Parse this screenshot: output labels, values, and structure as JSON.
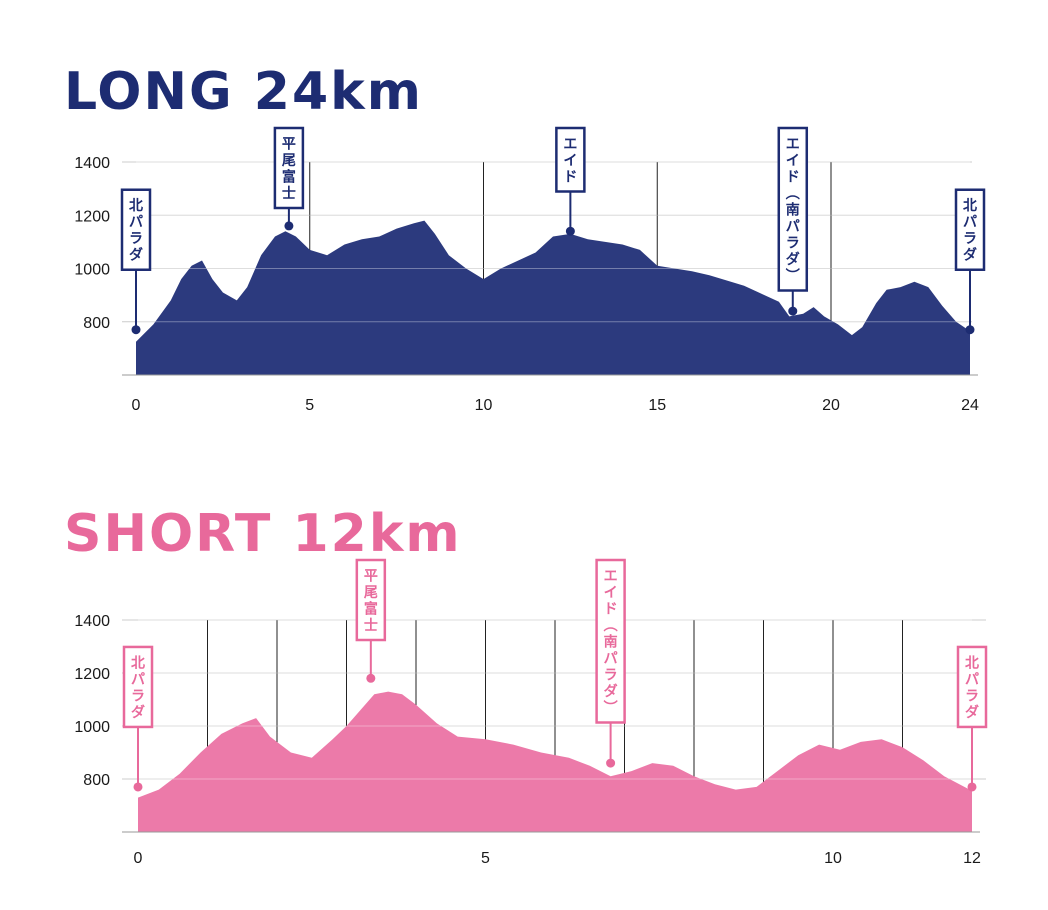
{
  "charts": [
    {
      "id": "long",
      "title": "LONG 24km",
      "color": "#1d2c72",
      "fill": "#2c3a7e",
      "chart_data": {
        "type": "area",
        "title": "LONG 24km",
        "xlabel": "",
        "ylabel": "",
        "xlim": [
          0,
          24
        ],
        "ylim": [
          600,
          1400
        ],
        "x_ticks": [
          0,
          5,
          10,
          15,
          20,
          24
        ],
        "y_ticks": [
          800,
          1000,
          1200,
          1400
        ],
        "grid": true,
        "vlines": [
          5,
          10,
          15,
          20
        ],
        "series": [
          {
            "x": [
              0,
              0.5,
              1,
              1.3,
              1.6,
              1.9,
              2.2,
              2.5,
              2.9,
              3.2,
              3.6,
              4.0,
              4.3,
              4.6,
              5.0,
              5.5,
              6.0,
              6.5,
              7.0,
              7.5,
              8.0,
              8.3,
              8.6,
              9.0,
              9.5,
              10.0,
              10.5,
              11.0,
              11.5,
              12.0,
              12.5,
              13.0,
              13.5,
              14.0,
              14.5,
              15.0,
              15.5,
              16.0,
              16.5,
              17.0,
              17.5,
              18.0,
              18.5,
              18.8,
              19.2,
              19.5,
              19.8,
              20.2,
              20.6,
              20.9,
              21.3,
              21.6,
              22.0,
              22.4,
              22.8,
              23.2,
              23.6,
              24.0
            ],
            "y": [
              725,
              790,
              880,
              960,
              1010,
              1030,
              960,
              910,
              880,
              930,
              1050,
              1120,
              1140,
              1120,
              1070,
              1050,
              1090,
              1110,
              1120,
              1150,
              1170,
              1180,
              1130,
              1050,
              1000,
              960,
              1000,
              1030,
              1060,
              1120,
              1130,
              1110,
              1100,
              1090,
              1070,
              1010,
              1000,
              990,
              975,
              955,
              935,
              905,
              875,
              820,
              830,
              855,
              820,
              790,
              750,
              780,
              870,
              920,
              930,
              950,
              930,
              860,
              800,
              765
            ]
          }
        ],
        "markers": [
          {
            "x": 0,
            "y": 770,
            "label": "北パラダ"
          },
          {
            "x": 4.4,
            "y": 1160,
            "label": "平尾富士"
          },
          {
            "x": 12.5,
            "y": 1140,
            "label": "エイド"
          },
          {
            "x": 18.9,
            "y": 840,
            "label": "エイド（南パラダ）"
          },
          {
            "x": 24,
            "y": 770,
            "label": "北パラダ"
          }
        ]
      }
    },
    {
      "id": "short",
      "title": "SHORT 12km",
      "color": "#e8699b",
      "fill": "#ec7aa9",
      "chart_data": {
        "type": "area",
        "title": "SHORT 12km",
        "xlabel": "",
        "ylabel": "",
        "xlim": [
          0,
          12
        ],
        "ylim": [
          600,
          1400
        ],
        "x_ticks": [
          0,
          5,
          10,
          12
        ],
        "y_ticks": [
          800,
          1000,
          1200,
          1400
        ],
        "grid": true,
        "vlines": [
          1,
          2,
          3,
          4,
          5,
          6,
          7,
          8,
          9,
          10,
          11
        ],
        "series": [
          {
            "x": [
              0,
              0.3,
              0.6,
              0.9,
              1.2,
              1.5,
              1.7,
              1.9,
              2.2,
              2.5,
              2.8,
              3.0,
              3.2,
              3.4,
              3.6,
              3.8,
              4.0,
              4.3,
              4.6,
              5.0,
              5.4,
              5.8,
              6.2,
              6.5,
              6.8,
              7.1,
              7.4,
              7.7,
              8.0,
              8.3,
              8.6,
              8.9,
              9.2,
              9.5,
              9.8,
              10.1,
              10.4,
              10.7,
              11.0,
              11.3,
              11.6,
              12.0
            ],
            "y": [
              730,
              760,
              820,
              900,
              970,
              1010,
              1030,
              960,
              900,
              880,
              950,
              1000,
              1060,
              1120,
              1130,
              1120,
              1080,
              1010,
              960,
              950,
              930,
              900,
              880,
              850,
              810,
              830,
              860,
              850,
              810,
              780,
              760,
              770,
              830,
              890,
              930,
              910,
              940,
              950,
              920,
              870,
              810,
              755
            ]
          }
        ],
        "markers": [
          {
            "x": 0,
            "y": 770,
            "label": "北パラダ"
          },
          {
            "x": 3.35,
            "y": 1180,
            "label": "平尾富士"
          },
          {
            "x": 6.8,
            "y": 860,
            "label": "エイド（南パラダ）"
          },
          {
            "x": 12,
            "y": 770,
            "label": "北パラダ"
          }
        ]
      }
    }
  ]
}
